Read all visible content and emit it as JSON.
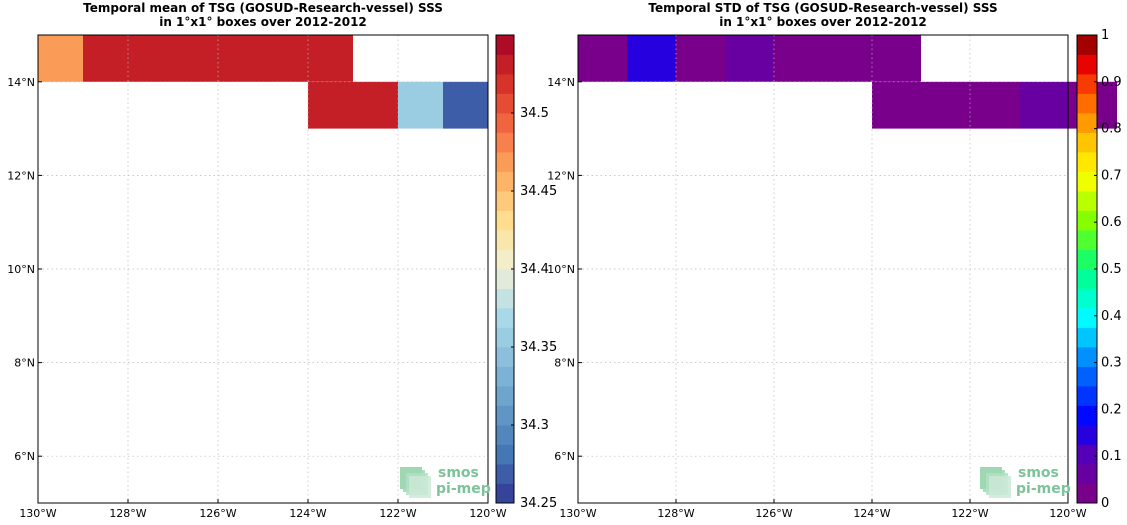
{
  "logo": {
    "line1": "smos",
    "line2": "pi-mep"
  },
  "chart_data": [
    {
      "type": "heatmap",
      "title_lines": [
        "Temporal mean of TSG (GOSUD-Research-vessel) SSS",
        "in 1°x1° boxes over 2012-2012"
      ],
      "xlim": [
        -130,
        -120
      ],
      "ylim": [
        5,
        15
      ],
      "x_ticks": [
        {
          "value": -130,
          "label": "130°W"
        },
        {
          "value": -128,
          "label": "128°W"
        },
        {
          "value": -126,
          "label": "126°W"
        },
        {
          "value": -124,
          "label": "124°W"
        },
        {
          "value": -122,
          "label": "122°W"
        },
        {
          "value": -120,
          "label": "120°W"
        }
      ],
      "y_ticks": [
        {
          "value": 6,
          "label": "6°N"
        },
        {
          "value": 8,
          "label": "8°N"
        },
        {
          "value": 10,
          "label": "10°N"
        },
        {
          "value": 12,
          "label": "12°N"
        },
        {
          "value": 14,
          "label": "14°N"
        }
      ],
      "grid": true,
      "colorbar": {
        "range": [
          34.25,
          34.55
        ],
        "steps": 24,
        "ticks": [
          "34.25",
          "34.3",
          "34.35",
          "34.4",
          "34.45",
          "34.5"
        ],
        "tick_values": [
          34.25,
          34.3,
          34.35,
          34.4,
          34.45,
          34.5
        ],
        "colormap": "RdYlBu_r",
        "placement": "right"
      },
      "cells": [
        {
          "lon": -130,
          "lat": 14,
          "value": 34.465
        },
        {
          "lon": -129,
          "lat": 14,
          "value": 34.53
        },
        {
          "lon": -128,
          "lat": 14,
          "value": 34.53
        },
        {
          "lon": -127,
          "lat": 14,
          "value": 34.53
        },
        {
          "lon": -126,
          "lat": 14,
          "value": 34.53
        },
        {
          "lon": -125,
          "lat": 14,
          "value": 34.53
        },
        {
          "lon": -124,
          "lat": 14,
          "value": 34.53
        },
        {
          "lon": -124,
          "lat": 13,
          "value": 34.53
        },
        {
          "lon": -123,
          "lat": 13,
          "value": 34.53
        },
        {
          "lon": -122,
          "lat": 13,
          "value": 34.355
        },
        {
          "lon": -121,
          "lat": 13,
          "value": 34.27
        }
      ]
    },
    {
      "type": "heatmap",
      "title_lines": [
        "Temporal STD of TSG (GOSUD-Research-vessel) SSS",
        "in 1°x1° boxes over 2012-2012"
      ],
      "xlim": [
        -130,
        -120
      ],
      "ylim": [
        5,
        15
      ],
      "x_ticks": [
        {
          "value": -130,
          "label": "130°W"
        },
        {
          "value": -128,
          "label": "128°W"
        },
        {
          "value": -126,
          "label": "126°W"
        },
        {
          "value": -124,
          "label": "124°W"
        },
        {
          "value": -122,
          "label": "122°W"
        },
        {
          "value": -120,
          "label": "120°W"
        }
      ],
      "y_ticks": [
        {
          "value": 6,
          "label": "6°N"
        },
        {
          "value": 8,
          "label": "8°N"
        },
        {
          "value": 10,
          "label": "10°N"
        },
        {
          "value": 12,
          "label": "12°N"
        },
        {
          "value": 14,
          "label": "14°N"
        }
      ],
      "grid": true,
      "colorbar": {
        "range": [
          0,
          1
        ],
        "steps": 24,
        "ticks": [
          "0",
          "0.1",
          "0.2",
          "0.3",
          "0.4",
          "0.5",
          "0.6",
          "0.7",
          "0.8",
          "0.9",
          "1"
        ],
        "tick_values": [
          0,
          0.1,
          0.2,
          0.3,
          0.4,
          0.5,
          0.6,
          0.7,
          0.8,
          0.9,
          1
        ],
        "colormap": "jet_purple",
        "placement": "right"
      },
      "cells": [
        {
          "lon": -130,
          "lat": 14,
          "value": 0.02
        },
        {
          "lon": -129,
          "lat": 14,
          "value": 0.14
        },
        {
          "lon": -128,
          "lat": 14,
          "value": 0.02
        },
        {
          "lon": -127,
          "lat": 14,
          "value": 0.06
        },
        {
          "lon": -126,
          "lat": 14,
          "value": 0.02
        },
        {
          "lon": -125,
          "lat": 14,
          "value": 0.02
        },
        {
          "lon": -124,
          "lat": 14,
          "value": 0.02
        },
        {
          "lon": -124,
          "lat": 13,
          "value": 0.02
        },
        {
          "lon": -123,
          "lat": 13,
          "value": 0.02
        },
        {
          "lon": -122,
          "lat": 13,
          "value": 0.02
        },
        {
          "lon": -121,
          "lat": 13,
          "value": 0.07
        },
        {
          "lon": -120,
          "lat": 13,
          "value": 0.02
        }
      ]
    }
  ]
}
